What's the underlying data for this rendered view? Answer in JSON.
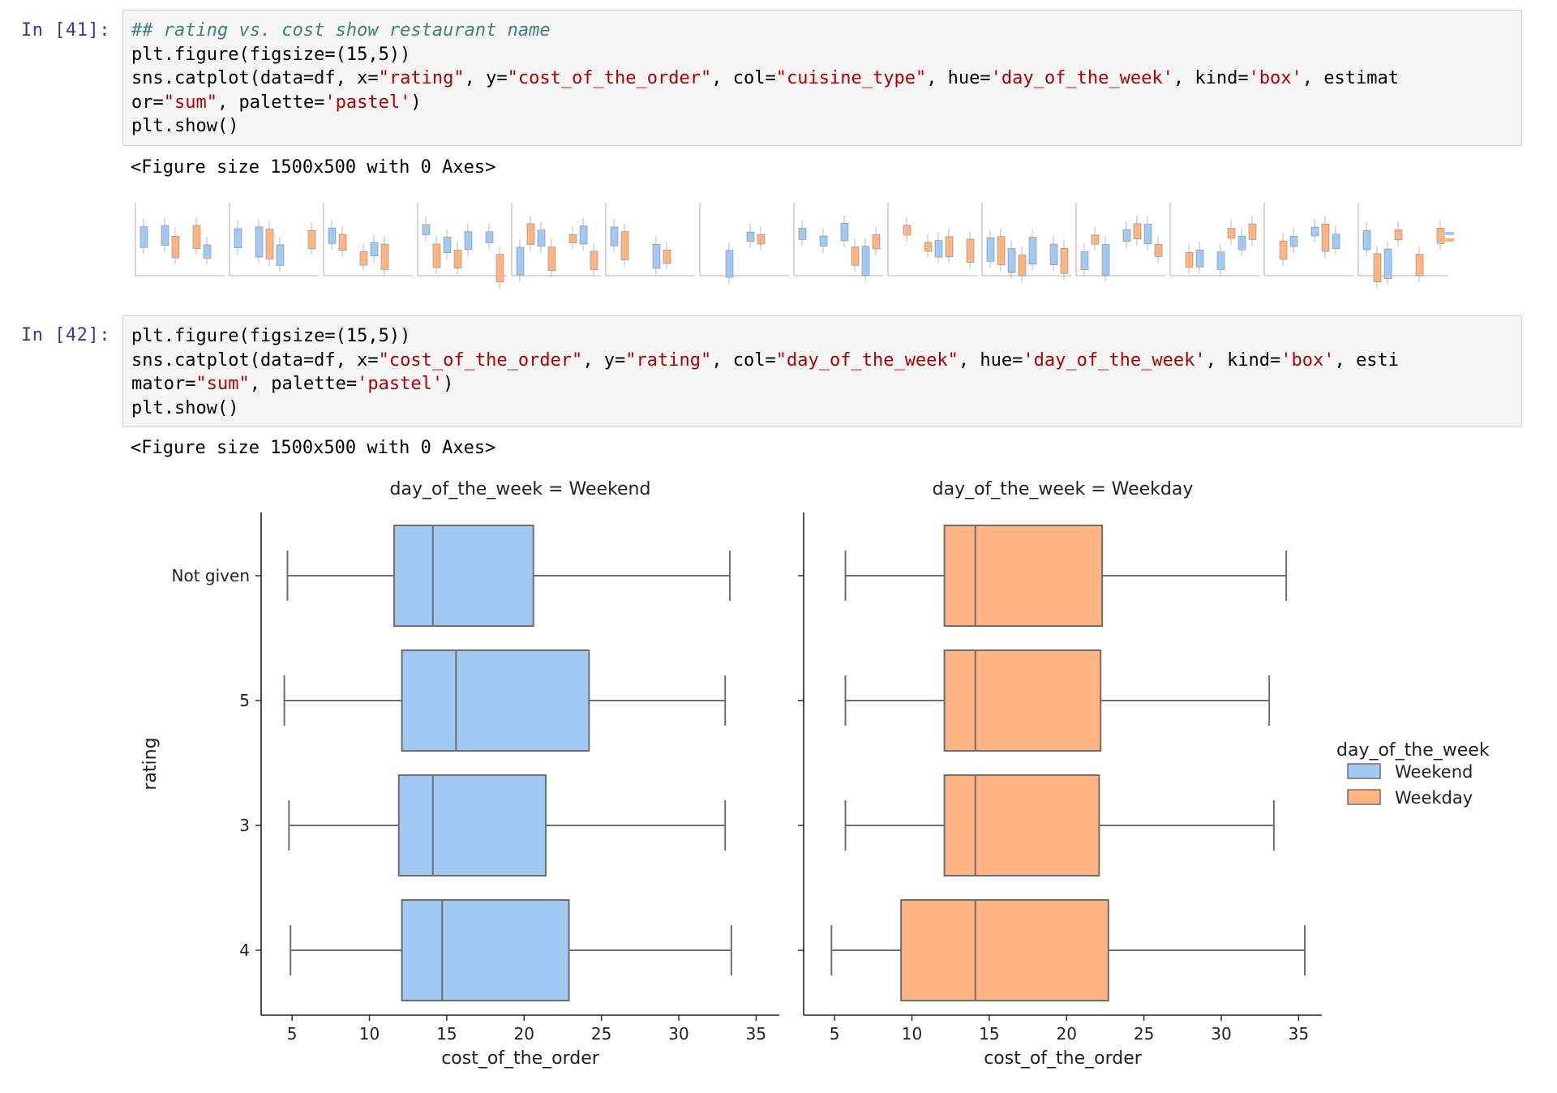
{
  "cells": [
    {
      "prompt": "In [41]:",
      "code": {
        "line1_comment": "## rating vs. cost show restaurant name",
        "line2": "plt.figure(figsize=(15,5))",
        "line3_parts": [
          "sns.catplot(data=df, x=",
          "\"rating\"",
          ", y=",
          "\"cost_of_the_order\"",
          ", col=",
          "\"cuisine_type\"",
          ", hue=",
          "'day_of_the_week'",
          ", kind=",
          "'box'",
          ", estimat"
        ],
        "line4_parts": [
          "or=",
          "\"sum\"",
          ", palette=",
          "'pastel'",
          ")"
        ],
        "line5": "plt.show()"
      },
      "output_text": "<Figure size 1500x500 with 0 Axes>"
    },
    {
      "prompt": "In [42]:",
      "code": {
        "line1": "plt.figure(figsize=(15,5))",
        "line2_parts": [
          "sns.catplot(data=df, x=",
          "\"cost_of_the_order\"",
          ", y=",
          "\"rating\"",
          ", col=",
          "\"day_of_the_week\"",
          ", hue=",
          "'day_of_the_week'",
          ", kind=",
          "'box'",
          ", esti"
        ],
        "line3_parts": [
          "mator=",
          "\"sum\"",
          ", palette=",
          "'pastel'",
          ")"
        ],
        "line4": "plt.show()"
      },
      "output_text": "<Figure size 1500x500 with 0 Axes>"
    }
  ],
  "colors": {
    "weekend": "#a1c9f4",
    "weekday": "#ffb482",
    "box_edge": "#6e6e6e"
  },
  "chart_data": {
    "type": "box",
    "orientation": "horizontal",
    "ylabel": "rating",
    "xlabel": "cost_of_the_order",
    "categories": [
      "Not given",
      "5",
      "3",
      "4"
    ],
    "xticks": [
      5,
      10,
      15,
      20,
      25,
      30,
      35
    ],
    "xlim": [
      3,
      36.5
    ],
    "legend": {
      "title": "day_of_the_week",
      "entries": [
        "Weekend",
        "Weekday"
      ],
      "placement": "center-right"
    },
    "panels": [
      {
        "title": "day_of_the_week = Weekend",
        "series": "Weekend",
        "boxes": [
          {
            "category": "Not given",
            "whislo": 4.7,
            "q1": 11.6,
            "med": 14.1,
            "q3": 20.6,
            "whishi": 33.3
          },
          {
            "category": "5",
            "whislo": 4.5,
            "q1": 12.1,
            "med": 15.6,
            "q3": 24.2,
            "whishi": 33.0
          },
          {
            "category": "3",
            "whislo": 4.8,
            "q1": 11.9,
            "med": 14.1,
            "q3": 21.4,
            "whishi": 33.0
          },
          {
            "category": "4",
            "whislo": 4.9,
            "q1": 12.1,
            "med": 14.7,
            "q3": 22.9,
            "whishi": 33.4
          }
        ]
      },
      {
        "title": "day_of_the_week = Weekday",
        "series": "Weekday",
        "boxes": [
          {
            "category": "Not given",
            "whislo": 5.7,
            "q1": 12.1,
            "med": 14.1,
            "q3": 22.3,
            "whishi": 34.2
          },
          {
            "category": "5",
            "whislo": 5.7,
            "q1": 12.1,
            "med": 14.1,
            "q3": 22.2,
            "whishi": 33.1
          },
          {
            "category": "3",
            "whislo": 5.7,
            "q1": 12.1,
            "med": 14.1,
            "q3": 22.1,
            "whishi": 33.4
          },
          {
            "category": "4",
            "whislo": 4.8,
            "q1": 9.3,
            "med": 14.1,
            "q3": 22.7,
            "whishi": 35.4
          }
        ]
      }
    ]
  }
}
